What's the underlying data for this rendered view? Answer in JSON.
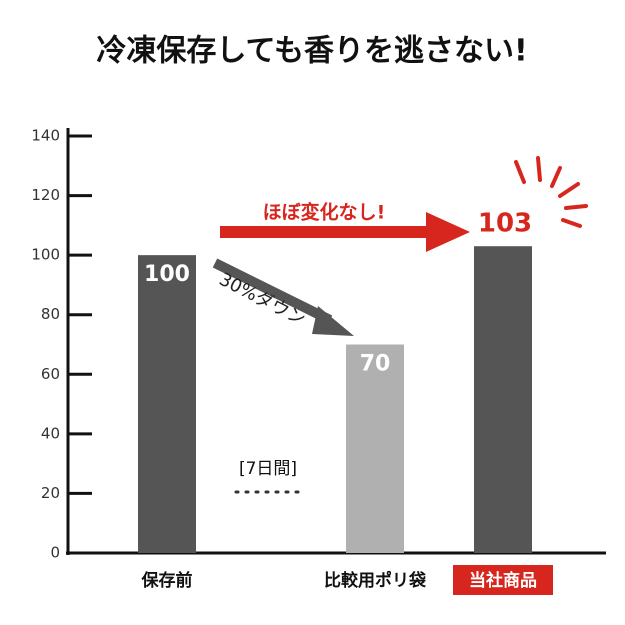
{
  "chart_data": {
    "type": "bar",
    "title": "冷凍保存しても香りを逃さない!",
    "categories": [
      "保存前",
      "比較用ポリ袋",
      "当社商品"
    ],
    "values": [
      100,
      70,
      103
    ],
    "colors": [
      "#555555",
      "#b0b0b0",
      "#555555"
    ],
    "highlight_index": 2,
    "highlight_color": "#d7261e",
    "ylim": [
      0,
      140
    ],
    "yticks": [
      0,
      20,
      40,
      60,
      80,
      100,
      120,
      140
    ],
    "annotations": {
      "flat": "ほぼ変化なし!",
      "down": "30%ダウン",
      "period": "[7日間]"
    }
  }
}
